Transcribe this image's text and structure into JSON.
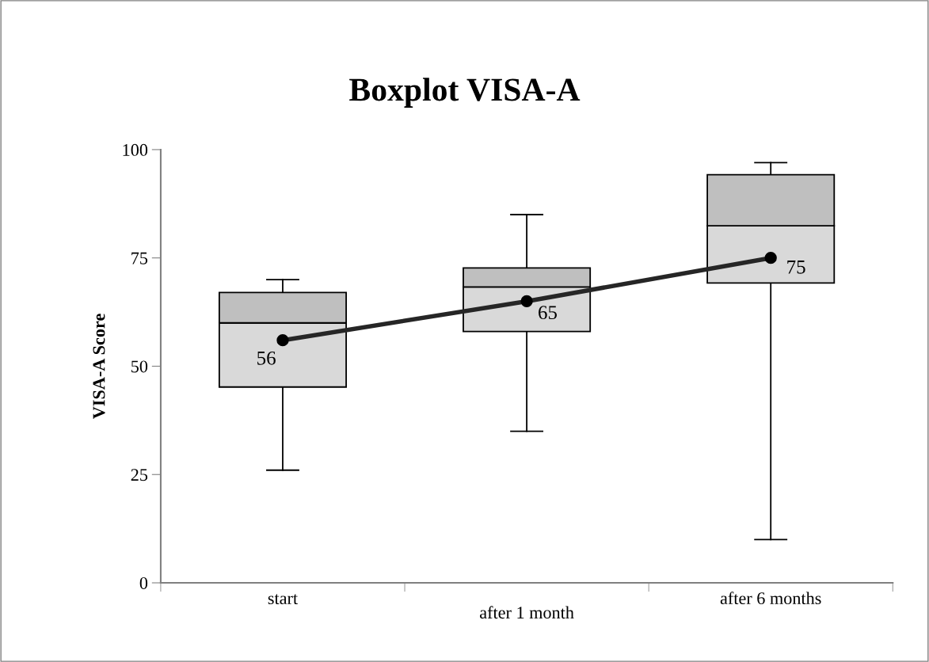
{
  "chart_data": {
    "type": "box",
    "title": "Boxplot VISA-A",
    "ylabel": "VISA-A Score",
    "categories": [
      "start",
      "after 1 month",
      "after 6 months"
    ],
    "boxes": [
      {
        "low": 26,
        "q1": 45.2,
        "median": 60,
        "q3": 67,
        "high": 70
      },
      {
        "low": 35,
        "q1": 58,
        "median": 68.3,
        "q3": 72.7,
        "high": 85
      },
      {
        "low": 10,
        "q1": 69.2,
        "median": 82.4,
        "q3": 94.2,
        "high": 97
      }
    ],
    "colors": [
      "#d9d9d9",
      "#d9d9d9",
      "#d9d9d9"
    ],
    "color": "#bfbfbf",
    "series": [
      {
        "type": "line",
        "color": "#262626",
        "values": [
          56,
          65,
          75
        ]
      }
    ],
    "marker": "circle",
    "data_labels": true,
    "ylim": [
      0,
      100
    ],
    "yticks": [
      0,
      25,
      50,
      75,
      100
    ]
  }
}
